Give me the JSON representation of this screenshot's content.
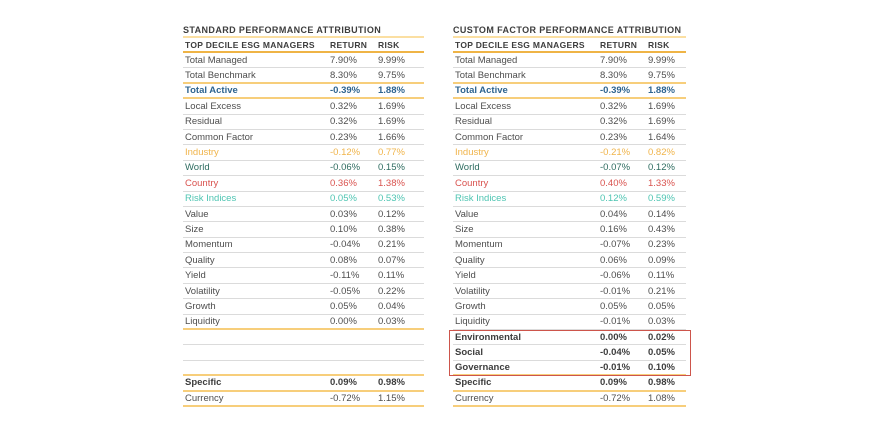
{
  "page": {
    "background": "#ffffff"
  },
  "colors": {
    "gold_strong": "#EFB446",
    "gold_light": "#FBDFA2",
    "gold_row": "#F7CE7B",
    "gray_line": "#DBDBDB",
    "text": "#4e4e4e",
    "text_bold": "#3d3d3d",
    "navy": "#2E6490",
    "teal_dark": "#2E6C60",
    "red": "#D9534F",
    "turquoise": "#4EC5B2",
    "gold_text": "#F0B44A",
    "esg_box_red": "#CD554B"
  },
  "chart_data": [
    {
      "type": "table",
      "title": "STANDARD PERFORMANCE ATTRIBUTION",
      "columns": [
        "TOP DECILE ESG MANAGERS",
        "RETURN",
        "RISK"
      ],
      "rows": [
        {
          "label": "Total Managed",
          "return": "7.90%",
          "risk": "9.99%",
          "border": "gray"
        },
        {
          "label": "Total Benchmark",
          "return": "8.30%",
          "risk": "9.75%",
          "border": "gold"
        },
        {
          "label": "Total Active",
          "return": "-0.39%",
          "risk": "1.88%",
          "border": "gold",
          "emphasis": "total-active"
        },
        {
          "label": "Local Excess",
          "return": "0.32%",
          "risk": "1.69%",
          "border": "gray"
        },
        {
          "label": "Residual",
          "return": "0.32%",
          "risk": "1.69%",
          "border": "gray"
        },
        {
          "label": "Common Factor",
          "return": "0.23%",
          "risk": "1.66%",
          "border": "gray"
        },
        {
          "label": "Industry",
          "return": "-0.12%",
          "risk": "0.77%",
          "border": "gray",
          "emphasis": "gold"
        },
        {
          "label": "World",
          "return": "-0.06%",
          "risk": "0.15%",
          "border": "gray",
          "emphasis": "teal"
        },
        {
          "label": "Country",
          "return": "0.36%",
          "risk": "1.38%",
          "border": "gray",
          "emphasis": "red"
        },
        {
          "label": "Risk Indices",
          "return": "0.05%",
          "risk": "0.53%",
          "border": "gray",
          "emphasis": "turquoise"
        },
        {
          "label": "Value",
          "return": "0.03%",
          "risk": "0.12%",
          "border": "gray"
        },
        {
          "label": "Size",
          "return": "0.10%",
          "risk": "0.38%",
          "border": "gray"
        },
        {
          "label": "Momentum",
          "return": "-0.04%",
          "risk": "0.21%",
          "border": "gray"
        },
        {
          "label": "Quality",
          "return": "0.08%",
          "risk": "0.07%",
          "border": "gray"
        },
        {
          "label": "Yield",
          "return": "-0.11%",
          "risk": "0.11%",
          "border": "gray"
        },
        {
          "label": "Volatility",
          "return": "-0.05%",
          "risk": "0.22%",
          "border": "gray"
        },
        {
          "label": "Growth",
          "return": "0.05%",
          "risk": "0.04%",
          "border": "gray"
        },
        {
          "label": "Liquidity",
          "return": "0.00%",
          "risk": "0.03%",
          "border": "gold"
        },
        {
          "label": "",
          "return": "",
          "risk": "",
          "border": "gray"
        },
        {
          "label": "",
          "return": "",
          "risk": "",
          "border": "gray"
        },
        {
          "label": "",
          "return": "",
          "risk": "",
          "border": "gold"
        },
        {
          "label": "Specific",
          "return": "0.09%",
          "risk": "0.98%",
          "border": "gold",
          "emphasis": "bold"
        },
        {
          "label": "Currency",
          "return": "-0.72%",
          "risk": "1.15%",
          "border": "gold"
        }
      ]
    },
    {
      "type": "table",
      "title": "CUSTOM FACTOR PERFORMANCE ATTRIBUTION",
      "columns": [
        "TOP DECILE ESG MANAGERS",
        "RETURN",
        "RISK"
      ],
      "rows": [
        {
          "label": "Total Managed",
          "return": "7.90%",
          "risk": "9.99%",
          "border": "gray"
        },
        {
          "label": "Total Benchmark",
          "return": "8.30%",
          "risk": "9.75%",
          "border": "gold"
        },
        {
          "label": "Total Active",
          "return": "-0.39%",
          "risk": "1.88%",
          "border": "gold",
          "emphasis": "total-active"
        },
        {
          "label": "Local Excess",
          "return": "0.32%",
          "risk": "1.69%",
          "border": "gray"
        },
        {
          "label": "Residual",
          "return": "0.32%",
          "risk": "1.69%",
          "border": "gray"
        },
        {
          "label": "Common Factor",
          "return": "0.23%",
          "risk": "1.64%",
          "border": "gray"
        },
        {
          "label": "Industry",
          "return": "-0.21%",
          "risk": "0.82%",
          "border": "gray",
          "emphasis": "gold"
        },
        {
          "label": "World",
          "return": "-0.07%",
          "risk": "0.12%",
          "border": "gray",
          "emphasis": "teal"
        },
        {
          "label": "Country",
          "return": "0.40%",
          "risk": "1.33%",
          "border": "gray",
          "emphasis": "red"
        },
        {
          "label": "Risk Indices",
          "return": "0.12%",
          "risk": "0.59%",
          "border": "gray",
          "emphasis": "turquoise"
        },
        {
          "label": "Value",
          "return": "0.04%",
          "risk": "0.14%",
          "border": "gray"
        },
        {
          "label": "Size",
          "return": "0.16%",
          "risk": "0.43%",
          "border": "gray"
        },
        {
          "label": "Momentum",
          "return": "-0.07%",
          "risk": "0.23%",
          "border": "gray"
        },
        {
          "label": "Quality",
          "return": "0.06%",
          "risk": "0.09%",
          "border": "gray"
        },
        {
          "label": "Yield",
          "return": "-0.06%",
          "risk": "0.11%",
          "border": "gray"
        },
        {
          "label": "Volatility",
          "return": "-0.01%",
          "risk": "0.21%",
          "border": "gray"
        },
        {
          "label": "Growth",
          "return": "0.05%",
          "risk": "0.05%",
          "border": "gray"
        },
        {
          "label": "Liquidity",
          "return": "-0.01%",
          "risk": "0.03%",
          "border": "gray"
        },
        {
          "label": "Environmental",
          "return": "0.00%",
          "risk": "0.02%",
          "border": "gray",
          "emphasis": "bold",
          "box": true
        },
        {
          "label": "Social",
          "return": "-0.04%",
          "risk": "0.05%",
          "border": "gray",
          "emphasis": "bold",
          "box": true
        },
        {
          "label": "Governance",
          "return": "-0.01%",
          "risk": "0.10%",
          "border": "gold",
          "emphasis": "bold",
          "box": true
        },
        {
          "label": "Specific",
          "return": "0.09%",
          "risk": "0.98%",
          "border": "gold",
          "emphasis": "bold"
        },
        {
          "label": "Currency",
          "return": "-0.72%",
          "risk": "1.08%",
          "border": "gold"
        }
      ]
    }
  ]
}
